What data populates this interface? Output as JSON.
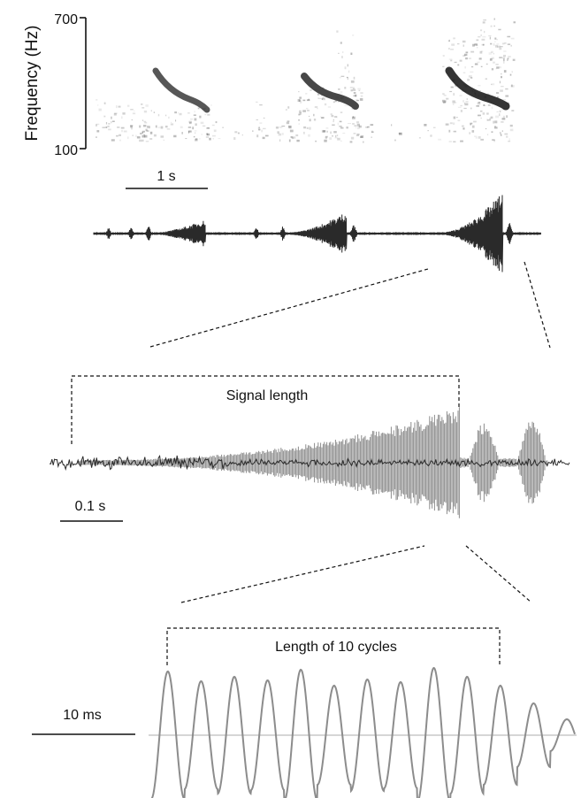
{
  "spectrogram": {
    "y_axis_label": "Frequency (Hz)",
    "y_tick_top": "700",
    "y_tick_bottom": "100",
    "scale_bar_label": "1 s"
  },
  "waveform_zoom": {
    "signal_length_label": "Signal length",
    "scale_bar_label": "0.1 s"
  },
  "cycles_detail": {
    "cycles_label": "Length of 10 cycles",
    "scale_bar_label": "10 ms"
  },
  "colors": {
    "ink": "#111111",
    "wave_dark": "#2a2a2a",
    "wave_grey": "#8c8c8c",
    "baseline": "#bdbdbd"
  }
}
